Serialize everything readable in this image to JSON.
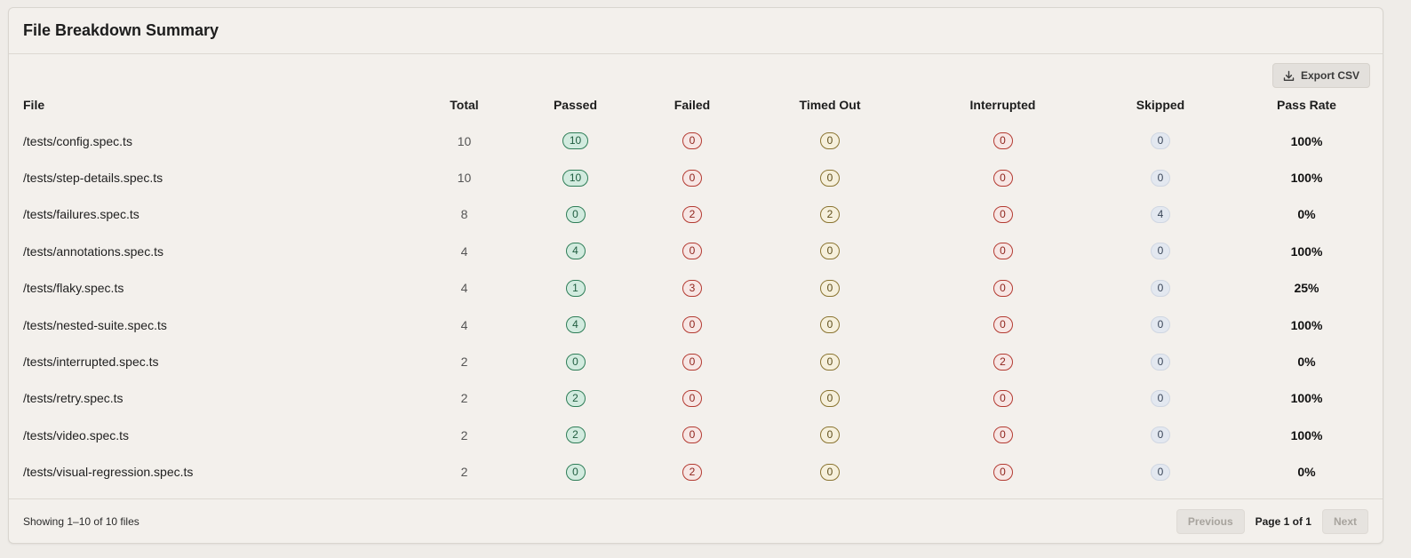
{
  "card": {
    "title": "File Breakdown Summary",
    "export_label": "Export CSV"
  },
  "table": {
    "columns": [
      "File",
      "Total",
      "Passed",
      "Failed",
      "Timed Out",
      "Interrupted",
      "Skipped",
      "Pass Rate"
    ],
    "rows": [
      {
        "file": "/tests/config.spec.ts",
        "total": "10",
        "passed": "10",
        "failed": "0",
        "timed_out": "0",
        "interrupted": "0",
        "skipped": "0",
        "pass_rate": "100%"
      },
      {
        "file": "/tests/step-details.spec.ts",
        "total": "10",
        "passed": "10",
        "failed": "0",
        "timed_out": "0",
        "interrupted": "0",
        "skipped": "0",
        "pass_rate": "100%"
      },
      {
        "file": "/tests/failures.spec.ts",
        "total": "8",
        "passed": "0",
        "failed": "2",
        "timed_out": "2",
        "interrupted": "0",
        "skipped": "4",
        "pass_rate": "0%"
      },
      {
        "file": "/tests/annotations.spec.ts",
        "total": "4",
        "passed": "4",
        "failed": "0",
        "timed_out": "0",
        "interrupted": "0",
        "skipped": "0",
        "pass_rate": "100%"
      },
      {
        "file": "/tests/flaky.spec.ts",
        "total": "4",
        "passed": "1",
        "failed": "3",
        "timed_out": "0",
        "interrupted": "0",
        "skipped": "0",
        "pass_rate": "25%"
      },
      {
        "file": "/tests/nested-suite.spec.ts",
        "total": "4",
        "passed": "4",
        "failed": "0",
        "timed_out": "0",
        "interrupted": "0",
        "skipped": "0",
        "pass_rate": "100%"
      },
      {
        "file": "/tests/interrupted.spec.ts",
        "total": "2",
        "passed": "0",
        "failed": "0",
        "timed_out": "0",
        "interrupted": "2",
        "skipped": "0",
        "pass_rate": "0%"
      },
      {
        "file": "/tests/retry.spec.ts",
        "total": "2",
        "passed": "2",
        "failed": "0",
        "timed_out": "0",
        "interrupted": "0",
        "skipped": "0",
        "pass_rate": "100%"
      },
      {
        "file": "/tests/video.spec.ts",
        "total": "2",
        "passed": "2",
        "failed": "0",
        "timed_out": "0",
        "interrupted": "0",
        "skipped": "0",
        "pass_rate": "100%"
      },
      {
        "file": "/tests/visual-regression.spec.ts",
        "total": "2",
        "passed": "0",
        "failed": "2",
        "timed_out": "0",
        "interrupted": "0",
        "skipped": "0",
        "pass_rate": "0%"
      }
    ]
  },
  "footer": {
    "showing": "Showing 1–10 of 10 files",
    "previous_label": "Previous",
    "page_label": "Page 1 of 1",
    "next_label": "Next"
  },
  "icons": {
    "export": "download-icon"
  },
  "colors": {
    "passed": "#2e7d57",
    "failed": "#b33a31",
    "timed_out": "#8a7431",
    "skipped": "#cfd6e2"
  }
}
